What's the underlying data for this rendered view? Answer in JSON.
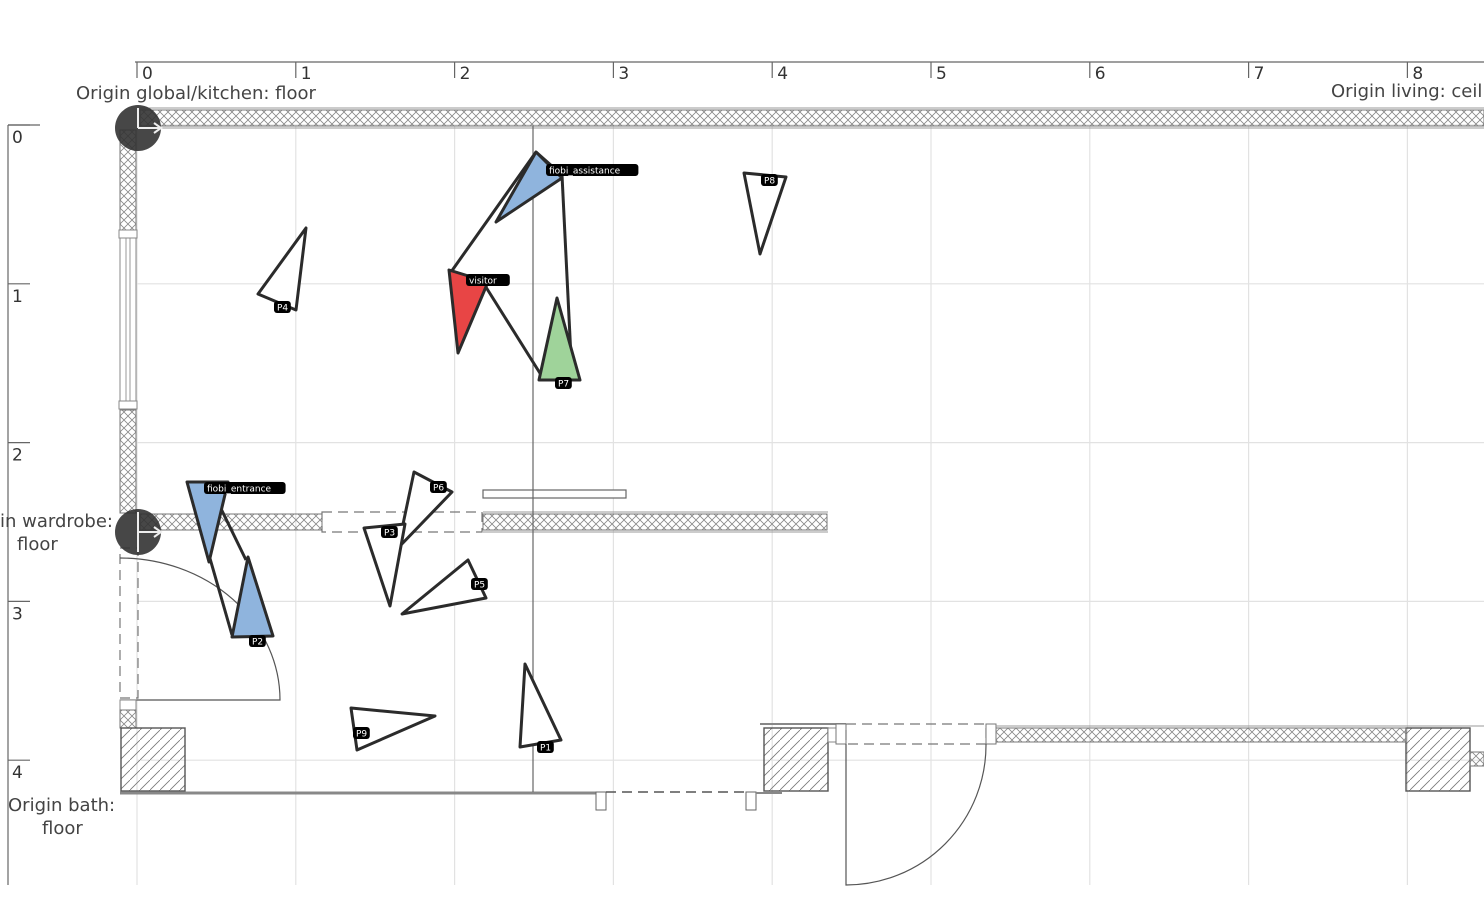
{
  "ruler": {
    "x_ticks": [
      "0",
      "1",
      "2",
      "3",
      "4",
      "5",
      "6",
      "7",
      "8"
    ],
    "y_ticks": [
      "0",
      "1",
      "2",
      "3",
      "4"
    ]
  },
  "origins": {
    "global_kitchen": "Origin global/kitchen: floor",
    "living": "Origin living: ceil",
    "wardrobe_line1": "in wardrobe:",
    "wardrobe_line2": "floor",
    "bath_line1": "Origin bath:",
    "bath_line2": "floor"
  },
  "colors": {
    "robot_fill": "#8fb4dd",
    "visitor_fill": "#e84545",
    "p7_fill": "#9fd39a",
    "outline": "#2b2b2b",
    "grid": "#e0e0e0",
    "wall_hatch": "#888888"
  },
  "markers": [
    {
      "id": "fiobi_assistance",
      "label": "fiobi_assistance",
      "kind": "robot"
    },
    {
      "id": "fiobi_entrance",
      "label": "fiobi_entrance",
      "kind": "robot"
    },
    {
      "id": "visitor",
      "label": "visitor",
      "kind": "visitor"
    },
    {
      "id": "P1",
      "label": "P1",
      "kind": "person"
    },
    {
      "id": "P2",
      "label": "P2",
      "kind": "robot"
    },
    {
      "id": "P3",
      "label": "P3",
      "kind": "person"
    },
    {
      "id": "P4",
      "label": "P4",
      "kind": "person"
    },
    {
      "id": "P5",
      "label": "P5",
      "kind": "person"
    },
    {
      "id": "P6",
      "label": "P6",
      "kind": "person"
    },
    {
      "id": "P7",
      "label": "P7",
      "kind": "goal"
    },
    {
      "id": "P8",
      "label": "P8",
      "kind": "person"
    },
    {
      "id": "P9",
      "label": "P9",
      "kind": "person"
    }
  ]
}
